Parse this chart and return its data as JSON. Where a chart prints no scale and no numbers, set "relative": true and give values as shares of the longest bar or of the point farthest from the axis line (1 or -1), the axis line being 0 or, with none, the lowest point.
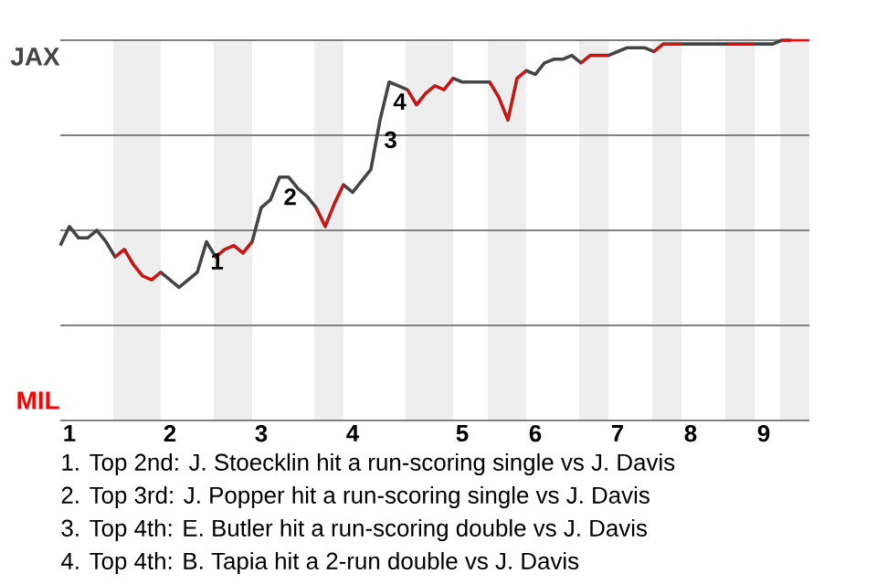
{
  "chart_data": {
    "type": "line",
    "relative": true,
    "categories": [
      null,
      "1",
      null,
      null,
      null,
      null,
      null,
      null,
      null,
      null,
      null,
      null,
      "2",
      null,
      null,
      null,
      null,
      null,
      null,
      null,
      null,
      null,
      "3",
      null,
      null,
      null,
      null,
      null,
      null,
      null,
      null,
      null,
      "4",
      null,
      null,
      null,
      null,
      null,
      null,
      null,
      null,
      null,
      null,
      null,
      "5",
      null,
      null,
      null,
      null,
      null,
      null,
      null,
      "6",
      null,
      null,
      null,
      null,
      null,
      null,
      null,
      null,
      "7",
      null,
      null,
      null,
      null,
      null,
      null,
      null,
      "8",
      null,
      null,
      null,
      null,
      null,
      null,
      null,
      "9",
      null,
      null,
      null,
      null,
      null
    ],
    "series": [
      {
        "color": "#444444",
        "values": [
          0.46,
          0.51,
          0.48,
          0.48,
          0.5,
          0.47,
          0.43,
          0.45,
          0.41,
          0.38,
          0.37,
          0.39,
          0.37,
          0.35,
          0.37,
          0.39,
          0.47,
          0.43,
          0.45,
          0.46,
          0.44,
          0.47,
          0.56,
          0.58,
          0.64,
          0.64,
          0.61,
          0.59,
          0.56,
          0.51,
          0.57,
          0.62,
          0.6,
          0.63,
          0.66,
          0.79,
          0.89,
          0.88,
          0.87,
          0.83,
          0.86,
          0.88,
          0.87,
          0.9,
          0.89,
          0.89,
          0.89,
          0.89,
          0.85,
          0.79,
          0.9,
          0.92,
          0.91,
          0.94,
          0.95,
          0.95,
          0.96,
          0.94,
          0.96,
          0.96,
          0.96,
          0.97,
          0.98,
          0.98,
          0.98,
          0.97,
          0.99,
          0.99,
          0.99,
          0.99,
          0.99,
          0.99,
          0.99,
          0.99,
          0.99,
          0.99,
          0.99,
          0.99,
          0.99,
          1,
          1,
          null,
          null
        ]
      },
      {
        "color": "#ff0000",
        "values": [
          null,
          null,
          null,
          null,
          null,
          null,
          0.43,
          0.45,
          0.41,
          0.38,
          0.37,
          0.39,
          null,
          null,
          null,
          null,
          null,
          0.43,
          0.45,
          0.46,
          0.44,
          0.47,
          null,
          null,
          null,
          null,
          null,
          null,
          0.56,
          0.51,
          0.57,
          0.62,
          null,
          null,
          null,
          null,
          null,
          null,
          0.87,
          0.83,
          0.86,
          0.88,
          0.87,
          0.9,
          null,
          null,
          null,
          0.89,
          0.85,
          0.79,
          0.9,
          0.92,
          null,
          null,
          null,
          null,
          null,
          0.94,
          0.96,
          0.96,
          0.96,
          null,
          null,
          null,
          null,
          0.97,
          0.99,
          0.99,
          0.99,
          null,
          null,
          null,
          null,
          0.99,
          0.99,
          0.99,
          0.99,
          null,
          null,
          1,
          1,
          1,
          1
        ]
      }
    ],
    "ref_lines": [
      {
        "axis": "y",
        "value": 0,
        "label": "MIL",
        "color": "#808080"
      },
      {
        "axis": "y",
        "value": 0.25,
        "color": "#808080"
      },
      {
        "axis": "y",
        "value": 0.5,
        "color": "#808080"
      },
      {
        "axis": "y",
        "value": 0.75,
        "color": "#808080"
      },
      {
        "axis": "y",
        "value": 1,
        "label": "JAX",
        "color": "#808080"
      }
    ],
    "annotations": [
      {
        "text": "1",
        "y": 0.47
      },
      {
        "text": "2",
        "y": 0.64
      },
      {
        "text": "3",
        "y": 0.79
      },
      {
        "text": "4",
        "y": 0.89
      },
      "1. Top 2nd: J. Stoecklin hit a run-scoring single vs J. Davis",
      "2. Top 3rd: J. Popper hit a run-scoring single vs J. Davis",
      "3. Top 4th: E. Butler hit a run-scoring double vs J. Davis",
      "4. Top 4th: B. Tapia hit a 2-run double vs J. Davis"
    ]
  }
}
